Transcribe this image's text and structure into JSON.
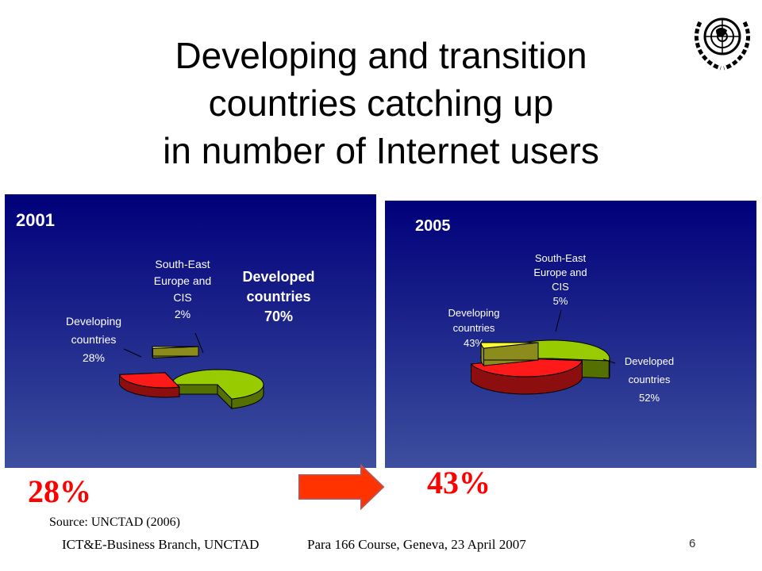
{
  "slide": {
    "title_lines": [
      "Developing and transition",
      "countries catching up",
      "in number of Internet users"
    ],
    "left_big_pct": "28%",
    "right_big_pct": "43%",
    "source": "Source: UNCTAD (2006)",
    "footer_left": "ICT&E-Business Branch, UNCTAD",
    "footer_center": "Para 166 Course, Geneva, 23 April 2007",
    "page_number": "6"
  },
  "colors": {
    "panel_top": "#00007a",
    "panel_bottom": "#3d4f9e",
    "developing": "#ff1a1a",
    "see_cis": "#ffff33",
    "developed": "#99cc00",
    "arrow": "#ff3300",
    "big_pct": "#ff0000"
  },
  "chart_data": [
    {
      "type": "pie",
      "title": "2001",
      "slices": [
        {
          "label_lines": [
            "Developed",
            "countries",
            "70%"
          ],
          "value": 70,
          "color": "#99cc00"
        },
        {
          "label_lines": [
            "Developing",
            "countries",
            "28%"
          ],
          "value": 28,
          "color": "#ff1a1a"
        },
        {
          "label_lines": [
            "South-East",
            "Europe and",
            "CIS",
            "2%"
          ],
          "value": 2,
          "color": "#ffff33"
        }
      ]
    },
    {
      "type": "pie",
      "title": "2005",
      "slices": [
        {
          "label_lines": [
            "Developed",
            "countries",
            "52%"
          ],
          "value": 52,
          "color": "#99cc00"
        },
        {
          "label_lines": [
            "Developing",
            "countries",
            "43%"
          ],
          "value": 43,
          "color": "#ff1a1a"
        },
        {
          "label_lines": [
            "South-East",
            "Europe and",
            "CIS",
            "5%"
          ],
          "value": 5,
          "color": "#ffff33"
        }
      ]
    }
  ]
}
